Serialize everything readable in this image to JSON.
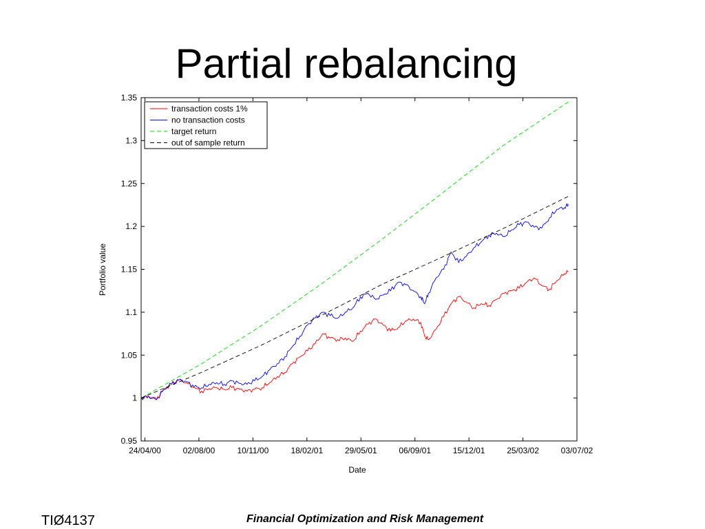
{
  "slide": {
    "title": "Partial rebalancing",
    "footer_left": "TIØ4137",
    "footer_center": "Financial Optimization and Risk Management"
  },
  "chart_data": {
    "type": "line",
    "title": "",
    "xlabel": "Date",
    "ylabel": "Portfolio value",
    "xlim": [
      "2000-04-17",
      "2002-07-03"
    ],
    "ylim": [
      0.95,
      1.35
    ],
    "xticks": [
      {
        "date": "2000-04-24",
        "label": "24/04/00"
      },
      {
        "date": "2000-08-02",
        "label": "02/08/00"
      },
      {
        "date": "2000-11-10",
        "label": "10/11/00"
      },
      {
        "date": "2001-02-18",
        "label": "18/02/01"
      },
      {
        "date": "2001-05-29",
        "label": "29/05/01"
      },
      {
        "date": "2001-09-06",
        "label": "06/09/01"
      },
      {
        "date": "2001-12-15",
        "label": "15/12/01"
      },
      {
        "date": "2002-03-25",
        "label": "25/03/02"
      },
      {
        "date": "2002-07-03",
        "label": "03/07/02"
      }
    ],
    "yticks": [
      0.95,
      1,
      1.05,
      1.1,
      1.15,
      1.2,
      1.25,
      1.3,
      1.35
    ],
    "ytick_labels": [
      "0.95",
      "1",
      "1.05",
      "1.1",
      "1.15",
      "1.2",
      "1.25",
      "1.3",
      "1.35"
    ],
    "grid": false,
    "legend_position": "top-left",
    "series": [
      {
        "name": "transaction costs 1%",
        "color": "#ff0000",
        "dash": "solid",
        "points": [
          [
            "2000-04-17",
            1.0
          ],
          [
            "2000-05-01",
            1.002
          ],
          [
            "2000-05-15",
            0.998
          ],
          [
            "2000-05-29",
            1.01
          ],
          [
            "2000-06-12",
            1.016
          ],
          [
            "2000-06-26",
            1.021
          ],
          [
            "2000-07-10",
            1.018
          ],
          [
            "2000-07-24",
            1.012
          ],
          [
            "2000-08-07",
            1.008
          ],
          [
            "2000-08-21",
            1.011
          ],
          [
            "2000-09-04",
            1.012
          ],
          [
            "2000-09-18",
            1.01
          ],
          [
            "2000-10-02",
            1.012
          ],
          [
            "2000-10-16",
            1.01
          ],
          [
            "2000-10-30",
            1.008
          ],
          [
            "2000-11-13",
            1.01
          ],
          [
            "2000-11-27",
            1.012
          ],
          [
            "2000-12-11",
            1.018
          ],
          [
            "2000-12-25",
            1.025
          ],
          [
            "2001-01-08",
            1.03
          ],
          [
            "2001-01-22",
            1.04
          ],
          [
            "2001-02-05",
            1.048
          ],
          [
            "2001-02-19",
            1.055
          ],
          [
            "2001-03-05",
            1.063
          ],
          [
            "2001-03-19",
            1.075
          ],
          [
            "2001-04-02",
            1.07
          ],
          [
            "2001-04-16",
            1.068
          ],
          [
            "2001-04-30",
            1.07
          ],
          [
            "2001-05-14",
            1.066
          ],
          [
            "2001-05-28",
            1.078
          ],
          [
            "2001-06-11",
            1.086
          ],
          [
            "2001-06-25",
            1.092
          ],
          [
            "2001-07-09",
            1.085
          ],
          [
            "2001-07-23",
            1.078
          ],
          [
            "2001-08-06",
            1.082
          ],
          [
            "2001-08-20",
            1.09
          ],
          [
            "2001-09-03",
            1.092
          ],
          [
            "2001-09-17",
            1.088
          ],
          [
            "2001-09-24",
            1.072
          ],
          [
            "2001-10-01",
            1.068
          ],
          [
            "2001-10-15",
            1.08
          ],
          [
            "2001-10-29",
            1.095
          ],
          [
            "2001-11-12",
            1.11
          ],
          [
            "2001-11-26",
            1.118
          ],
          [
            "2001-12-10",
            1.112
          ],
          [
            "2001-12-24",
            1.105
          ],
          [
            "2002-01-07",
            1.11
          ],
          [
            "2002-01-21",
            1.108
          ],
          [
            "2002-02-04",
            1.115
          ],
          [
            "2002-02-18",
            1.122
          ],
          [
            "2002-03-04",
            1.125
          ],
          [
            "2002-03-18",
            1.128
          ],
          [
            "2002-04-01",
            1.135
          ],
          [
            "2002-04-15",
            1.14
          ],
          [
            "2002-04-29",
            1.131
          ],
          [
            "2002-05-13",
            1.127
          ],
          [
            "2002-05-27",
            1.137
          ],
          [
            "2002-06-10",
            1.145
          ],
          [
            "2002-06-17",
            1.148
          ]
        ]
      },
      {
        "name": "no transaction costs",
        "color": "#0000ff",
        "dash": "solid",
        "points": [
          [
            "2000-04-17",
            1.0
          ],
          [
            "2000-05-01",
            1.002
          ],
          [
            "2000-05-15",
            0.998
          ],
          [
            "2000-05-29",
            1.01
          ],
          [
            "2000-06-12",
            1.016
          ],
          [
            "2000-06-26",
            1.021
          ],
          [
            "2000-07-10",
            1.019
          ],
          [
            "2000-07-24",
            1.013
          ],
          [
            "2000-08-07",
            1.012
          ],
          [
            "2000-08-21",
            1.016
          ],
          [
            "2000-09-04",
            1.018
          ],
          [
            "2000-09-18",
            1.016
          ],
          [
            "2000-10-02",
            1.02
          ],
          [
            "2000-10-16",
            1.017
          ],
          [
            "2000-10-30",
            1.016
          ],
          [
            "2000-11-13",
            1.02
          ],
          [
            "2000-11-27",
            1.025
          ],
          [
            "2000-12-11",
            1.033
          ],
          [
            "2000-12-25",
            1.04
          ],
          [
            "2001-01-08",
            1.048
          ],
          [
            "2001-01-22",
            1.06
          ],
          [
            "2001-02-05",
            1.072
          ],
          [
            "2001-02-19",
            1.085
          ],
          [
            "2001-03-05",
            1.093
          ],
          [
            "2001-03-19",
            1.1
          ],
          [
            "2001-04-02",
            1.096
          ],
          [
            "2001-04-16",
            1.093
          ],
          [
            "2001-04-30",
            1.1
          ],
          [
            "2001-05-14",
            1.105
          ],
          [
            "2001-05-28",
            1.118
          ],
          [
            "2001-06-11",
            1.122
          ],
          [
            "2001-06-25",
            1.115
          ],
          [
            "2001-07-09",
            1.12
          ],
          [
            "2001-07-23",
            1.125
          ],
          [
            "2001-08-06",
            1.135
          ],
          [
            "2001-08-20",
            1.132
          ],
          [
            "2001-09-03",
            1.125
          ],
          [
            "2001-09-17",
            1.118
          ],
          [
            "2001-09-24",
            1.11
          ],
          [
            "2001-10-01",
            1.122
          ],
          [
            "2001-10-15",
            1.14
          ],
          [
            "2001-10-29",
            1.15
          ],
          [
            "2001-11-12",
            1.17
          ],
          [
            "2001-11-26",
            1.158
          ],
          [
            "2001-12-10",
            1.165
          ],
          [
            "2001-12-24",
            1.175
          ],
          [
            "2002-01-07",
            1.182
          ],
          [
            "2002-01-21",
            1.19
          ],
          [
            "2002-02-04",
            1.192
          ],
          [
            "2002-02-18",
            1.188
          ],
          [
            "2002-03-04",
            1.196
          ],
          [
            "2002-03-18",
            1.202
          ],
          [
            "2002-04-01",
            1.205
          ],
          [
            "2002-04-15",
            1.199
          ],
          [
            "2002-04-29",
            1.198
          ],
          [
            "2002-05-13",
            1.21
          ],
          [
            "2002-05-27",
            1.22
          ],
          [
            "2002-06-10",
            1.222
          ],
          [
            "2002-06-17",
            1.226
          ]
        ]
      },
      {
        "name": "target return",
        "color": "#00dd00",
        "dash": "dashed",
        "points": [
          [
            "2000-04-17",
            1.0
          ],
          [
            "2000-08-07",
            1.04
          ],
          [
            "2000-11-27",
            1.085
          ],
          [
            "2001-03-19",
            1.134
          ],
          [
            "2001-07-09",
            1.186
          ],
          [
            "2001-10-29",
            1.24
          ],
          [
            "2002-02-18",
            1.295
          ],
          [
            "2002-06-17",
            1.345
          ]
        ]
      },
      {
        "name": "out of sample return",
        "color": "#000000",
        "dash": "dashed",
        "points": [
          [
            "2000-04-17",
            1.0
          ],
          [
            "2000-08-07",
            1.03
          ],
          [
            "2000-11-27",
            1.062
          ],
          [
            "2001-03-19",
            1.097
          ],
          [
            "2001-07-09",
            1.133
          ],
          [
            "2001-10-29",
            1.165
          ],
          [
            "2002-02-18",
            1.198
          ],
          [
            "2002-06-17",
            1.235
          ]
        ]
      }
    ]
  }
}
